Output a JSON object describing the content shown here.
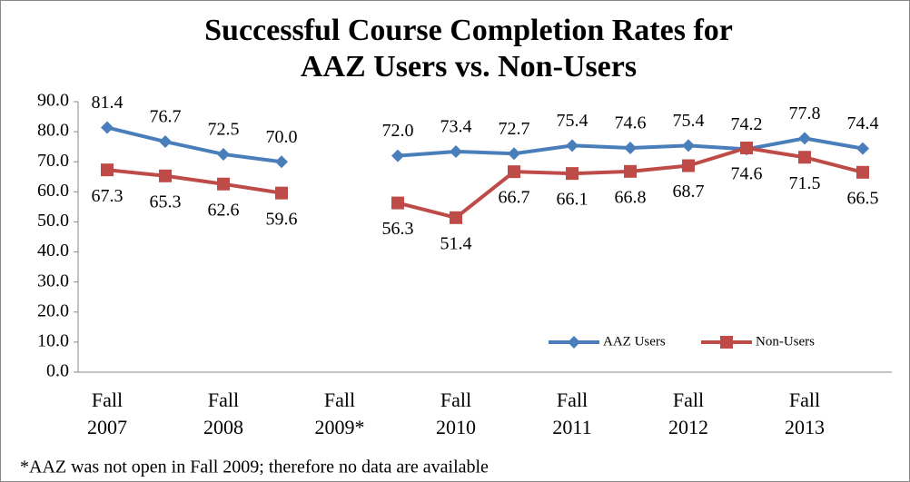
{
  "chart_data": {
    "type": "line",
    "title": [
      "Successful Course Completion Rates for",
      "AAZ Users vs. Non-Users"
    ],
    "footnote": "*AAZ was not open in Fall 2009; therefore no data are available",
    "categories": [
      "Fall 2007",
      null,
      "Fall 2008",
      null,
      "Fall 2009*",
      null,
      "Fall 2010",
      null,
      "Fall 2011",
      null,
      "Fall 2012",
      null,
      "Fall 2013",
      null
    ],
    "series": [
      {
        "name": "AAZ Users",
        "color": "#4a7ebb",
        "marker": "diamond",
        "values": [
          81.4,
          76.7,
          72.5,
          70.0,
          null,
          72.0,
          73.4,
          72.7,
          75.4,
          74.6,
          75.4,
          74.2,
          77.8,
          74.4
        ],
        "value_labels": [
          "81.4",
          "76.7",
          "72.5",
          "70.0",
          null,
          "72.0",
          "73.4",
          "72.7",
          "75.4",
          "74.6",
          "75.4",
          "74.2",
          "77.8",
          "74.4"
        ]
      },
      {
        "name": "Non-Users",
        "color": "#be4b48",
        "marker": "square",
        "values": [
          67.3,
          65.3,
          62.6,
          59.6,
          null,
          56.3,
          51.4,
          66.7,
          66.1,
          66.8,
          68.7,
          74.6,
          71.5,
          66.5
        ],
        "value_labels": [
          "67.3",
          "65.3",
          "62.6",
          "59.6",
          null,
          "56.3",
          "51.4",
          "66.7",
          "66.1",
          "66.8",
          "68.7",
          "74.6",
          "71.5",
          "66.5"
        ]
      }
    ],
    "ylim": [
      0,
      90
    ],
    "yticks": [
      {
        "value": 0,
        "label": "0.0"
      },
      {
        "value": 10,
        "label": "10.0"
      },
      {
        "value": 20,
        "label": "20.0"
      },
      {
        "value": 30,
        "label": "30.0"
      },
      {
        "value": 40,
        "label": "40.0"
      },
      {
        "value": 50,
        "label": "50.0"
      },
      {
        "value": 60,
        "label": "60.0"
      },
      {
        "value": 70,
        "label": "70.0"
      },
      {
        "value": 80,
        "label": "80.0"
      },
      {
        "value": 90,
        "label": "90.0"
      }
    ],
    "grid": false,
    "legend": "lower right"
  }
}
